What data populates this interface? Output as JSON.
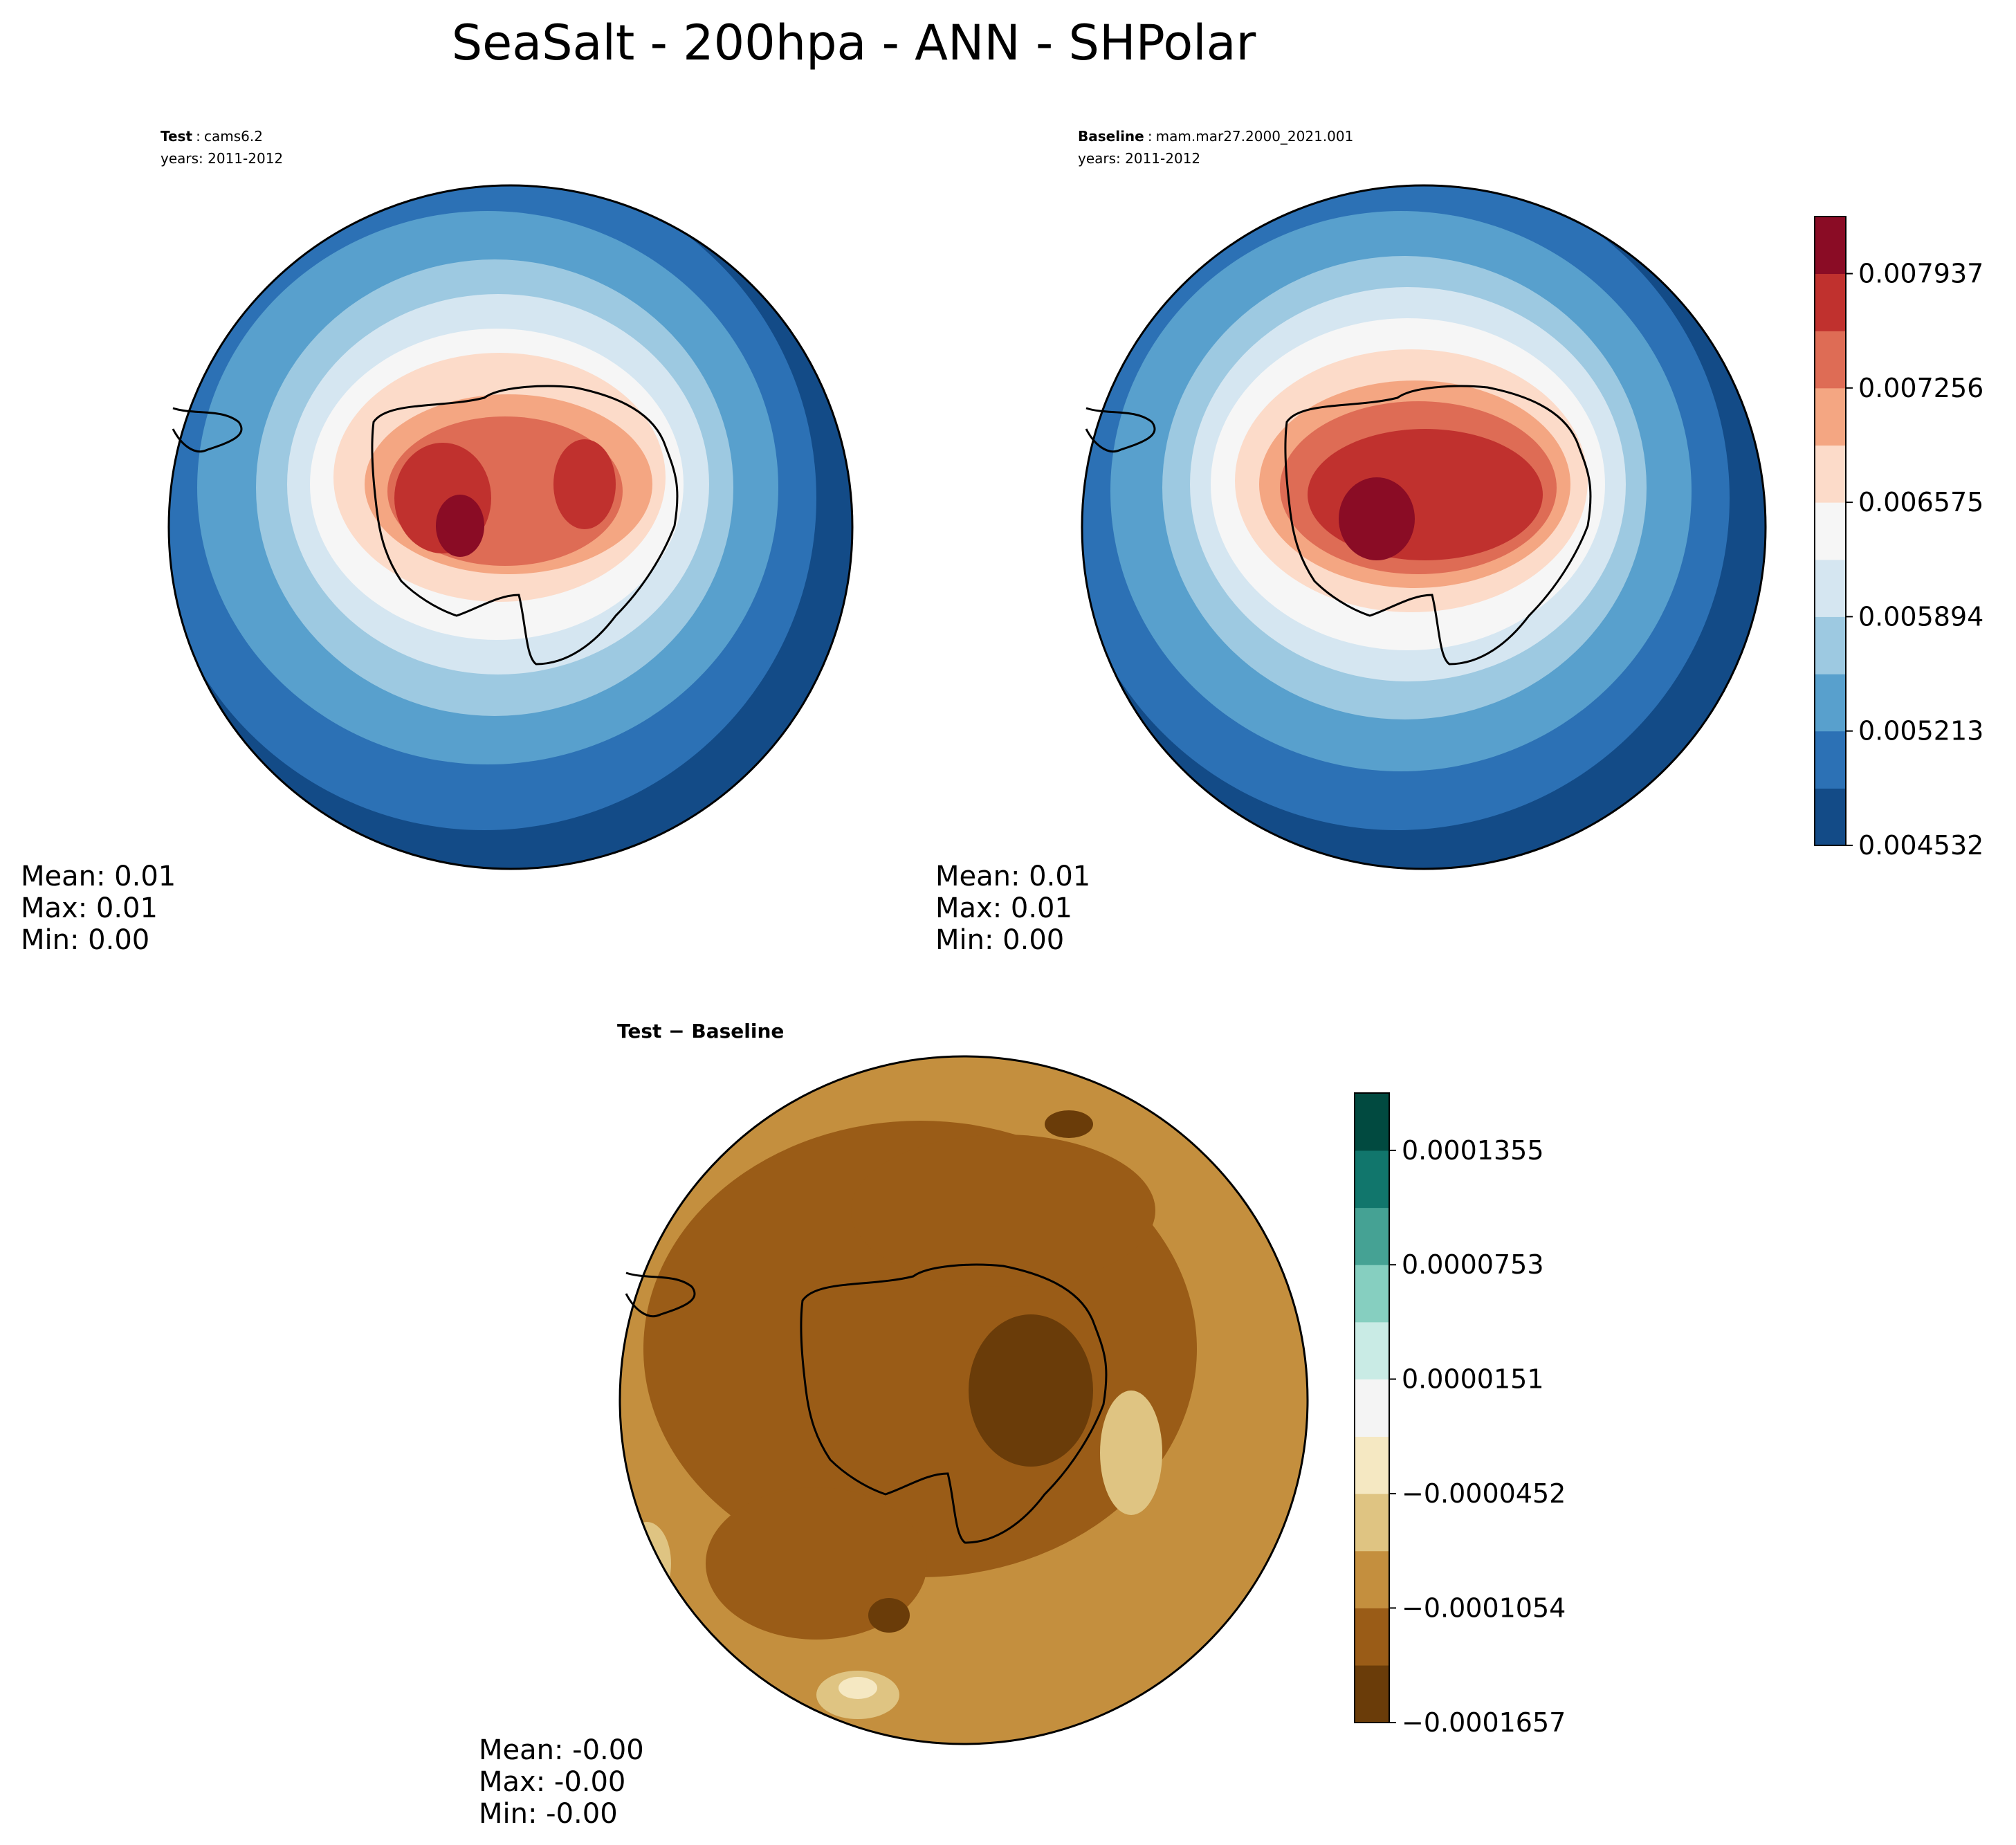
{
  "title": "SeaSalt - 200hpa - ANN - SHPolar",
  "panels": {
    "test": {
      "label": "Test",
      "sep": ":",
      "case": "cams6.2",
      "years": "years: 2011-2012",
      "stats": {
        "mean": "Mean:  0.01",
        "max": "Max:  0.01",
        "min": "Min:  0.00"
      }
    },
    "baseline": {
      "label": "Baseline",
      "sep": ":",
      "case": "mam.mar27.2000_2021.001",
      "years": "years: 2011-2012",
      "stats": {
        "mean": "Mean:  0.01",
        "max": "Max:  0.01",
        "min": "Min:  0.00"
      }
    },
    "diff": {
      "title": "Test − Baseline",
      "stats": {
        "mean": "Mean: -0.00",
        "max": "Max: -0.00",
        "min": "Min: -0.00"
      }
    }
  },
  "chart_data": [
    {
      "type": "heatmap",
      "name": "Test SeaSalt 200hPa ANN (south polar stereographic contour fill)",
      "projection": "south-polar-stereographic",
      "levels": [
        0.004532,
        0.004872,
        0.005213,
        0.005553,
        0.005894,
        0.006234,
        0.006575,
        0.006915,
        0.007256,
        0.007596,
        0.007937,
        0.008277
      ],
      "contour_bands": [
        "#134b87",
        "#2c71b5",
        "#58a0cd",
        "#9dc9e1",
        "#d5e6f1",
        "#f6f6f6",
        "#fcdbc9",
        "#f4a682",
        "#de6c55",
        "#c0312e",
        "#8a0c25"
      ],
      "pattern_note": "maximum over the Antarctic continent, decreasing outward to the mid-latitudes",
      "stats": {
        "mean": 0.01,
        "max": 0.01,
        "min": 0.0
      }
    },
    {
      "type": "heatmap",
      "name": "Baseline SeaSalt 200hPa ANN (south polar stereographic contour fill)",
      "projection": "south-polar-stereographic",
      "levels": [
        0.004532,
        0.004872,
        0.005213,
        0.005553,
        0.005894,
        0.006234,
        0.006575,
        0.006915,
        0.007256,
        0.007596,
        0.007937,
        0.008277
      ],
      "colorbar_ticks": [
        "0.004532",
        "0.005213",
        "0.005894",
        "0.006575",
        "0.007256",
        "0.007937"
      ],
      "contour_bands": [
        "#134b87",
        "#2c71b5",
        "#58a0cd",
        "#9dc9e1",
        "#d5e6f1",
        "#f6f6f6",
        "#fcdbc9",
        "#f4a682",
        "#de6c55",
        "#c0312e",
        "#8a0c25"
      ],
      "stats": {
        "mean": 0.01,
        "max": 0.01,
        "min": 0.0
      }
    },
    {
      "type": "heatmap",
      "name": "Test − Baseline difference",
      "projection": "south-polar-stereographic",
      "levels": [
        -0.0001657,
        -0.0001355,
        -0.0001054,
        -7.53e-05,
        -4.52e-05,
        -1.51e-05,
        1.51e-05,
        4.52e-05,
        7.53e-05,
        0.0001054,
        0.0001355,
        0.0001657
      ],
      "colorbar_ticks": [
        "−0.0001657",
        "−0.0001054",
        "−0.0000452",
        "0.0000151",
        "0.0000753",
        "0.0001355"
      ],
      "contour_bands": [
        "#6a3c09",
        "#9a5c17",
        "#c48f3e",
        "#dfc482",
        "#f5e8c2",
        "#f4f4f4",
        "#c9ebe5",
        "#86cfc0",
        "#45a294",
        "#11766c",
        "#014a40"
      ],
      "pattern_note": "differences negative almost everywhere, strongest over the Antarctic interior",
      "stats": {
        "mean": -0.0,
        "max": -0.0,
        "min": -0.0
      }
    }
  ]
}
